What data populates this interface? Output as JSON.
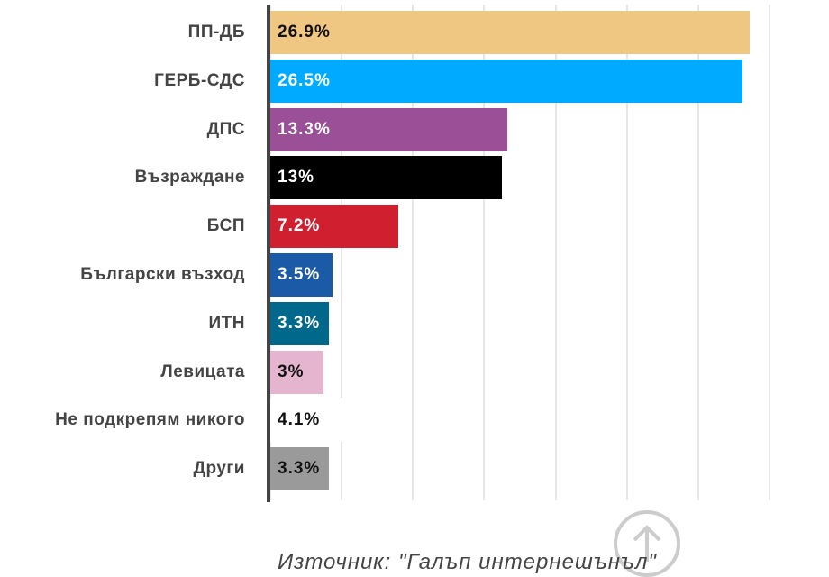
{
  "chart_data": {
    "type": "bar",
    "orientation": "horizontal",
    "categories": [
      "ПП-ДБ",
      "ГЕРБ-СДС",
      "ДПС",
      "Възраждане",
      "БСП",
      "Български възход",
      "ИТН",
      "Левицата",
      "Не подкрепям никого",
      "Други"
    ],
    "values": [
      26.9,
      26.5,
      13.3,
      13,
      7.2,
      3.5,
      3.3,
      3,
      4.1,
      3.3
    ],
    "value_labels": [
      "26.9%",
      "26.5%",
      "13.3%",
      "13%",
      "7.2%",
      "3.5%",
      "3.3%",
      "3%",
      "4.1%",
      "3.3%"
    ],
    "colors": [
      "#efc682",
      "#00aaff",
      "#9b4f96",
      "#000000",
      "#d0202f",
      "#1a5aa6",
      "#00688a",
      "#e5b5cf",
      "#ffffff",
      "#9a9a9a"
    ],
    "xlim": [
      0,
      28
    ],
    "xticks": [
      0,
      4,
      8,
      12,
      16,
      20,
      24,
      28
    ],
    "grid": true,
    "source": "Източник: \"Галъп интернешънъл\""
  }
}
